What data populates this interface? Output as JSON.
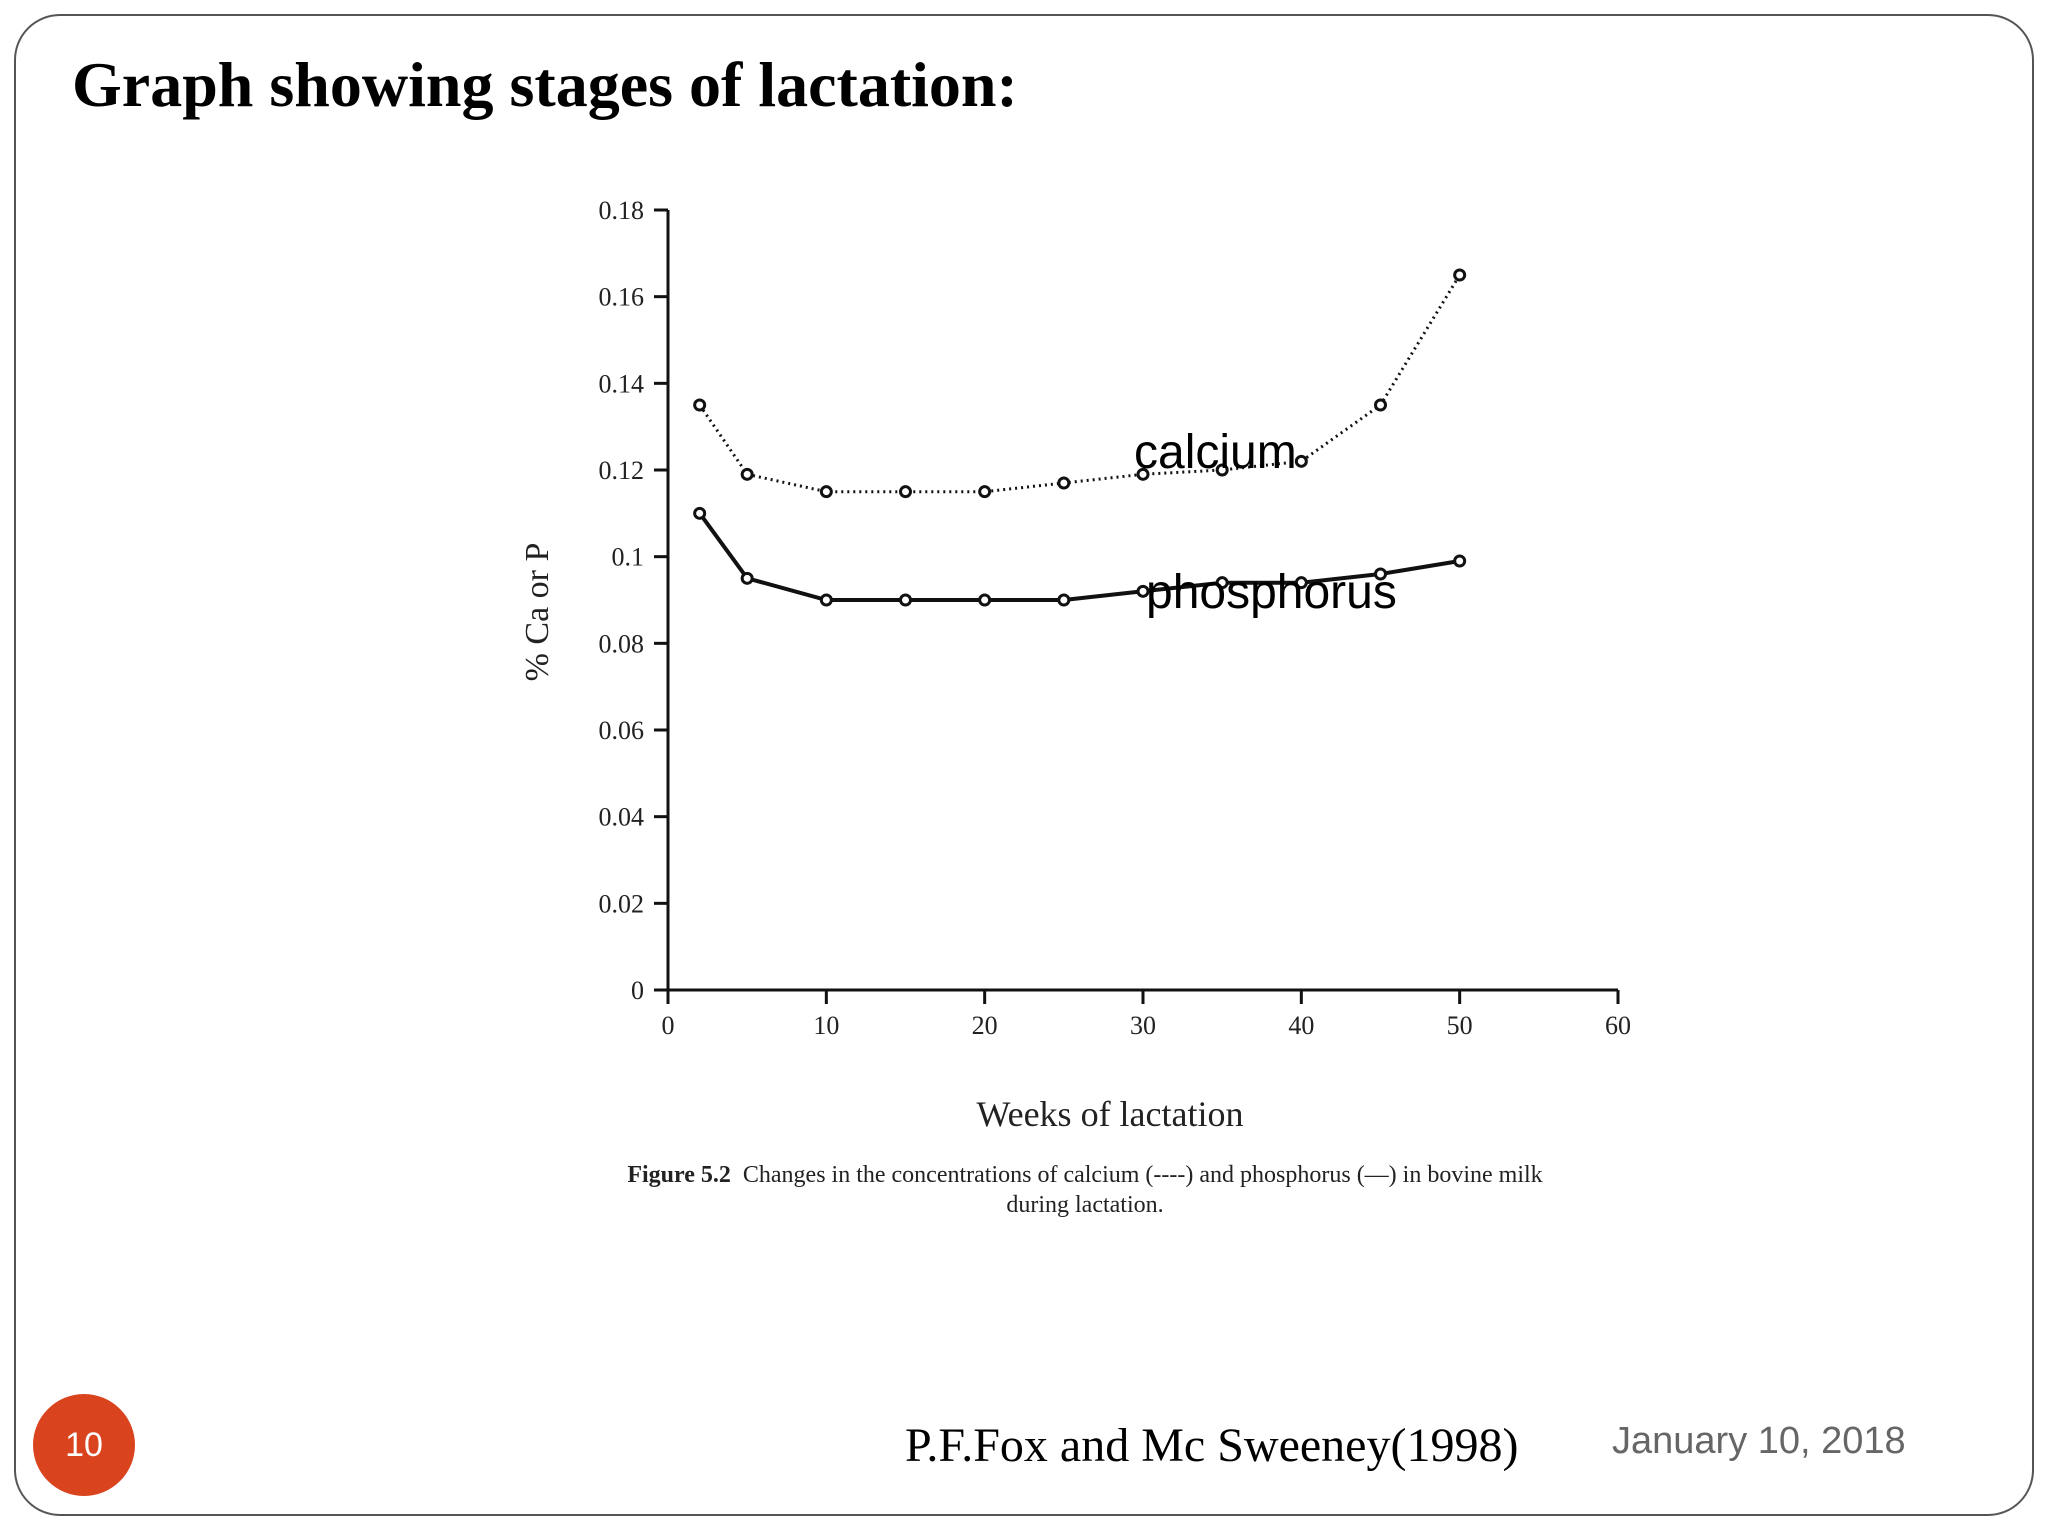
{
  "slide": {
    "title": "Graph showing stages of lactation:",
    "citation": "P.F.Fox and Mc Sweeney(1998)",
    "date": "January 10, 2018",
    "page_number": "10",
    "accent_color": "#d9441f"
  },
  "labels": {
    "calcium": "calcium",
    "phosphorus": "phosphorus"
  },
  "caption": {
    "figure_label": "Figure 5.2",
    "line1": "Changes in the concentrations of calcium (----) and phosphorus (—) in bovine milk",
    "line2": "during lactation."
  },
  "chart_data": {
    "type": "line",
    "xlabel": "Weeks of lactation",
    "ylabel": "% Ca or P",
    "xlim": [
      0,
      60
    ],
    "ylim": [
      0,
      0.18
    ],
    "x_ticks": [
      "0",
      "10",
      "20",
      "30",
      "40",
      "50",
      "60"
    ],
    "y_ticks": [
      "0",
      "0.02",
      "0.04",
      "0.06",
      "0.08",
      "0.1",
      "0.12",
      "0.14",
      "0.16",
      "0.18"
    ],
    "grid": false,
    "series": [
      {
        "name": "calcium",
        "style": "dotted",
        "x": [
          2,
          5,
          10,
          15,
          20,
          25,
          30,
          35,
          40,
          45,
          50
        ],
        "y": [
          0.135,
          0.119,
          0.115,
          0.115,
          0.115,
          0.117,
          0.119,
          0.12,
          0.122,
          0.135,
          0.165
        ]
      },
      {
        "name": "phosphorus",
        "style": "solid",
        "x": [
          2,
          5,
          10,
          15,
          20,
          25,
          30,
          35,
          40,
          45,
          50
        ],
        "y": [
          0.11,
          0.095,
          0.09,
          0.09,
          0.09,
          0.09,
          0.092,
          0.094,
          0.094,
          0.096,
          0.099
        ]
      }
    ]
  }
}
